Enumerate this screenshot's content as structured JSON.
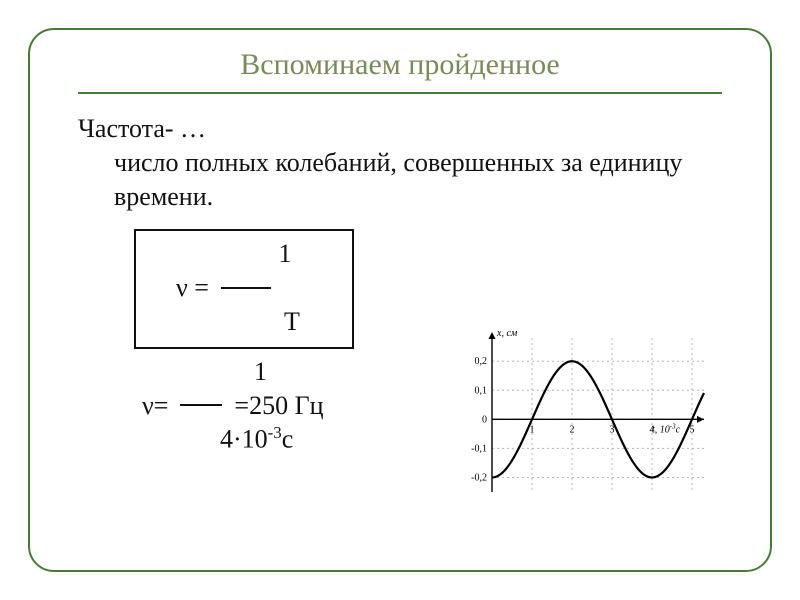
{
  "title": "Вспоминаем пройденное",
  "term": "Частота- …",
  "definition": "число полных колебаний, совершенных за единицу времени.",
  "formula_box": {
    "numerator": "1",
    "lhs": "ν =",
    "denominator": "T"
  },
  "calc": {
    "numerator": "1",
    "lhs": "ν=",
    "rhs": "=250 Гц",
    "denominator_base": "4·10",
    "denominator_exp": "-3",
    "denominator_unit": "с"
  },
  "graph": {
    "type": "line",
    "background_color": "#ffffff",
    "grid_color": "#b5b5b5",
    "axis_color": "#000000",
    "curve_color": "#000000",
    "curve_width": 2.2,
    "y_label": "x, см",
    "x_label_prefix": "t, 10",
    "x_label_exp": "-3",
    "x_label_unit": "с",
    "label_fontsize": 10,
    "xlim": [
      0,
      5.3
    ],
    "ylim": [
      -0.25,
      0.28
    ],
    "xticks": [
      1,
      2,
      3,
      4,
      5
    ],
    "yticks": [
      -0.2,
      -0.1,
      0,
      0.1,
      0.2
    ],
    "ytick_labels": [
      "-0,2",
      "-0,1",
      "0",
      "0,1",
      "0,2"
    ],
    "curve": {
      "amplitude": 0.2,
      "period": 4,
      "phase_shift": 1.0,
      "points_t": [
        0,
        0.3,
        0.6,
        1.0,
        1.4,
        1.7,
        2.0,
        2.3,
        2.6,
        3.0,
        3.4,
        3.7,
        4.0,
        4.3,
        4.6,
        5.0,
        5.3
      ],
      "points_x": [
        -0.2,
        -0.176,
        -0.118,
        0.0,
        0.118,
        0.176,
        0.2,
        0.176,
        0.118,
        0.0,
        -0.118,
        -0.176,
        -0.2,
        -0.176,
        -0.118,
        0.0,
        0.118
      ]
    }
  },
  "colors": {
    "frame": "#4a7a3a",
    "title": "#7a8a5a",
    "text": "#111111"
  }
}
